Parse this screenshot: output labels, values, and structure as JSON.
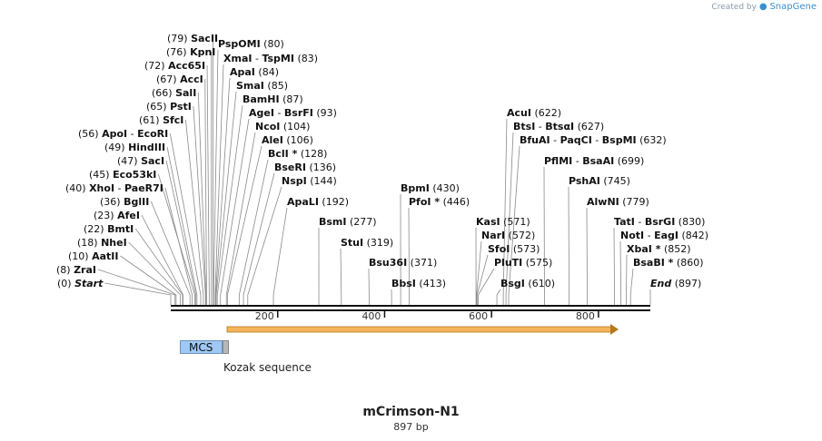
{
  "credit": {
    "prefix": "Created by",
    "brand": "SnapGene"
  },
  "construct": {
    "name": "mCrimson-N1",
    "length": "897 bp"
  },
  "features": {
    "mcs_label": "MCS",
    "kozak_label": "Kozak sequence",
    "orf_color": "#f0a33a"
  },
  "ruler": {
    "ticks": [
      "200",
      "400",
      "600",
      "800"
    ]
  },
  "sites": [
    {
      "pos": "(0)",
      "name": "Start",
      "bp": 0
    },
    {
      "pos": "(8)",
      "name": "ZraI",
      "bp": 8
    },
    {
      "pos": "(10)",
      "name": "AatII",
      "bp": 10
    },
    {
      "pos": "(18)",
      "name": "NheI",
      "bp": 18
    },
    {
      "pos": "(22)",
      "name": "BmtI",
      "bp": 22
    },
    {
      "pos": "(23)",
      "name": "AfeI",
      "bp": 23
    },
    {
      "pos": "(36)",
      "name": "BglII",
      "bp": 36
    },
    {
      "pos": "(40)",
      "name": "XhoI",
      "bp": 40,
      "extra": "PaeR7I"
    },
    {
      "pos": "(45)",
      "name": "Eco53kI",
      "bp": 45
    },
    {
      "pos": "(47)",
      "name": "SacI",
      "bp": 47
    },
    {
      "pos": "(49)",
      "name": "HindIII",
      "bp": 49
    },
    {
      "pos": "(56)",
      "name": "ApoI",
      "bp": 56,
      "extra": "EcoRI"
    },
    {
      "pos": "(61)",
      "name": "SfcI",
      "bp": 61
    },
    {
      "pos": "(65)",
      "name": "PstI",
      "bp": 65
    },
    {
      "pos": "(66)",
      "name": "SalI",
      "bp": 66
    },
    {
      "pos": "(67)",
      "name": "AccI",
      "bp": 67
    },
    {
      "pos": "(72)",
      "name": "Acc65I",
      "bp": 72
    },
    {
      "pos": "(76)",
      "name": "KpnI",
      "bp": 76
    },
    {
      "pos": "(79)",
      "name": "SacII",
      "bp": 79
    },
    {
      "pos": "(80)",
      "name": "PspOMI",
      "bp": 80
    },
    {
      "pos": "(83)",
      "name": "XmaI",
      "bp": 83,
      "extra": "TspMI"
    },
    {
      "pos": "(84)",
      "name": "ApaI",
      "bp": 84
    },
    {
      "pos": "(85)",
      "name": "SmaI",
      "bp": 85
    },
    {
      "pos": "(87)",
      "name": "BamHI",
      "bp": 87
    },
    {
      "pos": "(93)",
      "name": "AgeI",
      "bp": 93,
      "extra": "BsrFI"
    },
    {
      "pos": "(104)",
      "name": "NcoI",
      "bp": 104
    },
    {
      "pos": "(106)",
      "name": "AleI",
      "bp": 106
    },
    {
      "pos": "(128)",
      "name": "BclI *",
      "bp": 128
    },
    {
      "pos": "(136)",
      "name": "BseRI",
      "bp": 136
    },
    {
      "pos": "(144)",
      "name": "NspI",
      "bp": 144
    },
    {
      "pos": "(192)",
      "name": "ApaLI",
      "bp": 192
    },
    {
      "pos": "(277)",
      "name": "BsmI",
      "bp": 277
    },
    {
      "pos": "(319)",
      "name": "StuI",
      "bp": 319
    },
    {
      "pos": "(371)",
      "name": "Bsu36I",
      "bp": 371
    },
    {
      "pos": "(413)",
      "name": "BbsI",
      "bp": 413
    },
    {
      "pos": "(430)",
      "name": "BpmI",
      "bp": 430
    },
    {
      "pos": "(446)",
      "name": "PfoI *",
      "bp": 446
    },
    {
      "pos": "(571)",
      "name": "KasI",
      "bp": 571
    },
    {
      "pos": "(572)",
      "name": "NarI",
      "bp": 572
    },
    {
      "pos": "(573)",
      "name": "SfoI",
      "bp": 573
    },
    {
      "pos": "(575)",
      "name": "PluTI",
      "bp": 575
    },
    {
      "pos": "(610)",
      "name": "BsgI",
      "bp": 610
    },
    {
      "pos": "(622)",
      "name": "AcuI",
      "bp": 622
    },
    {
      "pos": "(627)",
      "name": "BtsI",
      "bp": 627,
      "extra": "BtsαI"
    },
    {
      "pos": "(632)",
      "name": "BfuAI",
      "bp": 632,
      "extra": "PaqCI",
      "extra2": "BspMI"
    },
    {
      "pos": "(699)",
      "name": "PflMI",
      "bp": 699,
      "extra": "BsaAI"
    },
    {
      "pos": "(745)",
      "name": "PshAI",
      "bp": 745
    },
    {
      "pos": "(779)",
      "name": "AlwNI",
      "bp": 779
    },
    {
      "pos": "(830)",
      "name": "TatI",
      "bp": 830,
      "extra": "BsrGI"
    },
    {
      "pos": "(842)",
      "name": "NotI",
      "bp": 842,
      "extra": "EagI"
    },
    {
      "pos": "(852)",
      "name": "XbaI *",
      "bp": 852
    },
    {
      "pos": "(860)",
      "name": "BsaBI *",
      "bp": 860
    },
    {
      "pos": "(897)",
      "name": "End",
      "bp": 897
    }
  ]
}
